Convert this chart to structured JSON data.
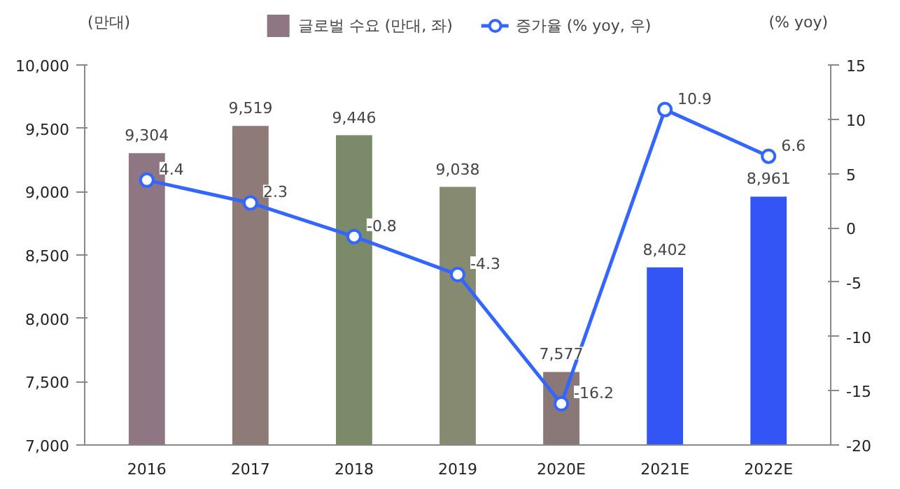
{
  "chart_data": {
    "type": "bar",
    "categories": [
      "2016",
      "2017",
      "2018",
      "2019",
      "2020E",
      "2021E",
      "2022E"
    ],
    "ylabel": "(만대)",
    "y2label": "(% yoy)",
    "legend": "top",
    "data_labels": true,
    "ylim": [
      7000,
      10000
    ],
    "yticks": [
      {
        "value": 7000,
        "label": "7,000"
      },
      {
        "value": 7500,
        "label": "7,500"
      },
      {
        "value": 8000,
        "label": "8,000"
      },
      {
        "value": 8500,
        "label": "8,500"
      },
      {
        "value": 9000,
        "label": "9,000"
      },
      {
        "value": 9500,
        "label": "9,500"
      },
      {
        "value": 10000,
        "label": "10,000"
      }
    ],
    "y2lim": [
      -20,
      15
    ],
    "y2ticks": [
      -20,
      -15,
      -10,
      -5,
      0,
      5,
      10,
      15
    ],
    "series": [
      {
        "name": "글로벌 수요 (만대, 좌)",
        "colors": [
          "#8f7683",
          "#8e7b78",
          "#7b8a68",
          "#868a70",
          "#8a7778",
          "#3355f5",
          "#3355f5"
        ],
        "values": [
          9304,
          9519,
          9446,
          9038,
          7577,
          8402,
          8961
        ],
        "value_labels": [
          "9,304",
          "9,519",
          "9,446",
          "9,038",
          "7,577",
          "8,402",
          "8,961"
        ]
      },
      {
        "name": "증가율 (% yoy, 우)",
        "type": "line",
        "axis": "y2",
        "color": "#3366ff",
        "marker": "circle",
        "values": [
          4.4,
          2.3,
          -0.8,
          -4.3,
          -16.2,
          10.9,
          6.6
        ]
      }
    ]
  }
}
